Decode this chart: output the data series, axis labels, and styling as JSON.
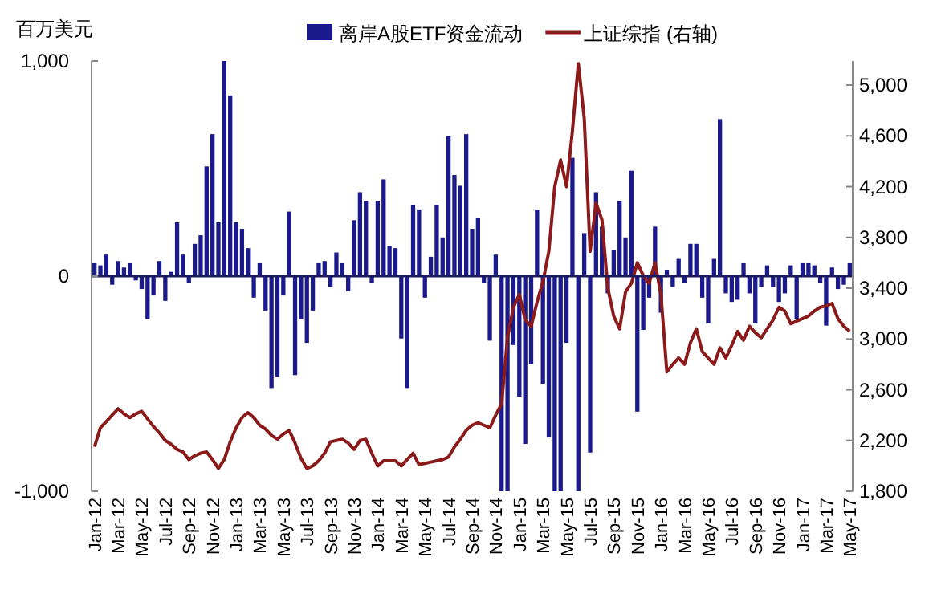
{
  "chart_data": {
    "type": "bar",
    "ylabel": "百万美元",
    "legend": "top",
    "grid": false,
    "categories": [
      "Jan-12",
      null,
      null,
      null,
      "Mar-12",
      null,
      null,
      null,
      "May-12",
      null,
      null,
      null,
      "Jul-12",
      null,
      null,
      null,
      "Sep-12",
      null,
      null,
      null,
      "Nov-12",
      null,
      null,
      null,
      "Jan-13",
      null,
      null,
      null,
      "Mar-13",
      null,
      null,
      null,
      "May-13",
      null,
      null,
      null,
      "Jul-13",
      null,
      null,
      null,
      "Sep-13",
      null,
      null,
      null,
      "Nov-13",
      null,
      null,
      null,
      "Jan-14",
      null,
      null,
      null,
      "Mar-14",
      null,
      null,
      null,
      "May-14",
      null,
      null,
      null,
      "Jul-14",
      null,
      null,
      null,
      "Sep-14",
      null,
      null,
      null,
      "Nov-14",
      null,
      null,
      null,
      "Jan-15",
      null,
      null,
      null,
      "Mar-15",
      null,
      null,
      null,
      "May-15",
      null,
      null,
      null,
      "Jul-15",
      null,
      null,
      null,
      "Sep-15",
      null,
      null,
      null,
      "Nov-15",
      null,
      null,
      null,
      "Jan-16",
      null,
      null,
      null,
      "Mar-16",
      null,
      null,
      null,
      "May-16",
      null,
      null,
      null,
      "Jul-16",
      null,
      null,
      null,
      "Sep-16",
      null,
      null,
      null,
      "Nov-16",
      null,
      null,
      null,
      "Jan-17",
      null,
      null,
      null,
      "Mar-17",
      null,
      null,
      null,
      "May-17"
    ],
    "series": [
      {
        "name": "离岸A股ETF资金流动",
        "color": "#1a1a8c",
        "values": [
          60,
          50,
          100,
          -40,
          70,
          40,
          60,
          -20,
          -60,
          -200,
          -90,
          70,
          -115,
          20,
          250,
          100,
          -30,
          150,
          190,
          510,
          660,
          250,
          1000,
          840,
          250,
          220,
          130,
          -100,
          60,
          -160,
          -520,
          -470,
          -90,
          300,
          -460,
          -200,
          -310,
          -160,
          60,
          70,
          -50,
          110,
          60,
          -70,
          260,
          390,
          350,
          -30,
          350,
          450,
          140,
          130,
          -290,
          -520,
          330,
          310,
          -100,
          90,
          330,
          180,
          650,
          470,
          420,
          660,
          220,
          270,
          -30,
          -300,
          100,
          -1000,
          -1000,
          -320,
          -560,
          -780,
          -410,
          310,
          -500,
          -750,
          -1000,
          -1000,
          -310,
          550,
          -1000,
          200,
          -820,
          390,
          230,
          -80,
          120,
          350,
          180,
          490,
          -630,
          -250,
          -100,
          230,
          -170,
          30,
          -50,
          80,
          -30,
          150,
          150,
          -100,
          -220,
          80,
          730,
          -80,
          -120,
          -110,
          60,
          -80,
          -220,
          -50,
          50,
          -50,
          -120,
          -80,
          50,
          -200,
          60,
          60,
          50,
          -30,
          -230,
          40,
          -60,
          -40,
          60
        ]
      },
      {
        "name": "上证综指 (右轴)",
        "type": "line",
        "axis": "y2",
        "color": "#8b1a1a",
        "values": [
          2150,
          2300,
          2350,
          2400,
          2450,
          2410,
          2380,
          2410,
          2430,
          2370,
          2310,
          2260,
          2200,
          2170,
          2130,
          2110,
          2050,
          2080,
          2100,
          2110,
          2050,
          1980,
          2050,
          2190,
          2300,
          2380,
          2420,
          2380,
          2320,
          2290,
          2240,
          2210,
          2250,
          2280,
          2180,
          2060,
          1980,
          2000,
          2040,
          2100,
          2190,
          2200,
          2210,
          2180,
          2130,
          2200,
          2210,
          2100,
          2000,
          2040,
          2040,
          2040,
          2000,
          2050,
          2100,
          2010,
          2020,
          2030,
          2040,
          2050,
          2070,
          2150,
          2210,
          2280,
          2320,
          2340,
          2320,
          2300,
          2400,
          2490,
          3010,
          3250,
          3350,
          3150,
          3100,
          3290,
          3450,
          3690,
          4200,
          4410,
          4200,
          4640,
          5170,
          4740,
          3690,
          4070,
          3940,
          3400,
          3180,
          3080,
          3370,
          3440,
          3600,
          3500,
          3440,
          3600,
          3350,
          2740,
          2800,
          2850,
          2800,
          2970,
          3080,
          2900,
          2850,
          2800,
          2930,
          2850,
          2950,
          3060,
          2990,
          3100,
          3050,
          3010,
          3080,
          3150,
          3250,
          3220,
          3120,
          3140,
          3160,
          3180,
          3220,
          3250,
          3260,
          3280,
          3160,
          3100,
          3060
        ]
      }
    ],
    "ylim": [
      -1000,
      1000
    ],
    "yticks": [
      {
        "value": 1000,
        "label": "1,000"
      },
      0,
      {
        "value": -1000,
        "label": "-1,000"
      }
    ],
    "y2lim": [
      1800,
      5190
    ],
    "y2ticks": [
      {
        "value": 1800,
        "label": "1,800"
      },
      {
        "value": 2200,
        "label": "2,200"
      },
      {
        "value": 2600,
        "label": "2,600"
      },
      {
        "value": 3000,
        "label": "3,000"
      },
      {
        "value": 3400,
        "label": "3,400"
      },
      {
        "value": 3800,
        "label": "3,800"
      },
      {
        "value": 4200,
        "label": "4,200"
      },
      {
        "value": 4600,
        "label": "4,600"
      },
      {
        "value": 5000,
        "label": "5,000"
      }
    ]
  }
}
